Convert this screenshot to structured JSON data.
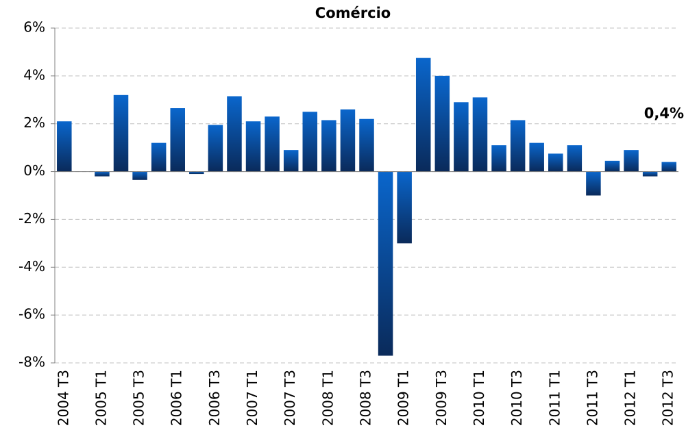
{
  "chart_data": {
    "type": "bar",
    "title": "Comércio",
    "categories": [
      "2004 T3",
      null,
      "2005 T1",
      null,
      "2005 T3",
      null,
      "2006 T1",
      null,
      "2006 T3",
      null,
      "2007 T1",
      null,
      "2007 T3",
      null,
      "2008 T1",
      null,
      "2008 T3",
      null,
      "2009 T1",
      null,
      "2009 T3",
      null,
      "2010 T1",
      null,
      "2010 T3",
      null,
      "2011 T1",
      null,
      "2011 T3",
      null,
      "2012 T1",
      null,
      "2012 T3"
    ],
    "values": [
      2.1,
      0,
      -0.2,
      3.2,
      -0.35,
      1.2,
      2.65,
      -0.1,
      1.95,
      3.15,
      2.1,
      2.3,
      0.9,
      2.5,
      2.15,
      2.6,
      2.2,
      -7.7,
      -3.0,
      4.75,
      4.0,
      2.9,
      3.1,
      1.1,
      2.15,
      1.2,
      0.75,
      1.1,
      -1.0,
      0.45,
      0.9,
      -0.2,
      0.4
    ],
    "value_labels": [
      null,
      null,
      null,
      null,
      null,
      null,
      null,
      null,
      null,
      null,
      null,
      null,
      null,
      null,
      null,
      null,
      null,
      null,
      null,
      null,
      null,
      null,
      null,
      null,
      null,
      null,
      null,
      null,
      null,
      null,
      null,
      null,
      "0,4%"
    ],
    "color": "#0a66cc",
    "ylim": [
      -8,
      6
    ],
    "yticks": [
      {
        "value": -8,
        "label": "-8%"
      },
      {
        "value": -6,
        "label": "-6%"
      },
      {
        "value": -4,
        "label": "-4%"
      },
      {
        "value": -2,
        "label": "-2%"
      },
      {
        "value": 0,
        "label": "0%"
      },
      {
        "value": 2,
        "label": "2%"
      },
      {
        "value": 4,
        "label": "4%"
      },
      {
        "value": 6,
        "label": "6%"
      }
    ],
    "grid": true
  }
}
